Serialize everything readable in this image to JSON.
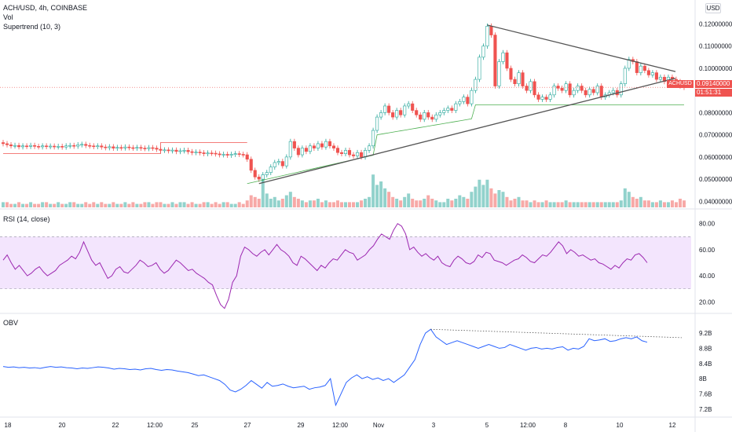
{
  "header": {
    "symbol_line": "ACH/USD, 4h, COINBASE",
    "vol_label": "Vol",
    "supertrend_label": "Supertrend (10, 3)",
    "currency_badge": "USD"
  },
  "price_tag": {
    "symbol": "ACHUSD",
    "price": "0.09140000",
    "countdown": "01:51:31",
    "color": "#ef5350"
  },
  "colors": {
    "up": "#26a69a",
    "down": "#ef5350",
    "rsi_line": "#9c27b0",
    "rsi_band": "#f3e5fd",
    "obv_line": "#2962ff",
    "supertrend_up": "#4caf50",
    "supertrend_down": "#ef5350"
  },
  "chart_data": [
    {
      "type": "candlestick",
      "title": "ACH/USD, 4h, COINBASE",
      "y_ticks": [
        "0.12000000",
        "0.11000000",
        "0.10000000",
        "0.08000000",
        "0.07000000",
        "0.06000000",
        "0.05000000",
        "0.04000000"
      ],
      "y_tick_values": [
        0.12,
        0.11,
        0.1,
        0.08,
        0.07,
        0.06,
        0.05,
        0.04
      ],
      "ylim": [
        0.038,
        0.123
      ],
      "closes": [
        0.066,
        0.0655,
        0.065,
        0.0652,
        0.0646,
        0.065,
        0.0648,
        0.0652,
        0.0648,
        0.0646,
        0.065,
        0.0647,
        0.0649,
        0.0646,
        0.0648,
        0.0645,
        0.065,
        0.0652,
        0.0649,
        0.0655,
        0.0657,
        0.0652,
        0.065,
        0.0647,
        0.065,
        0.0645,
        0.0642,
        0.0646,
        0.064,
        0.0643,
        0.0641,
        0.0645,
        0.0642,
        0.064,
        0.0643,
        0.064,
        0.0638,
        0.0642,
        0.064,
        0.0635,
        0.063,
        0.0632,
        0.0628,
        0.0631,
        0.0625,
        0.0628,
        0.063,
        0.0624,
        0.062,
        0.0622,
        0.0619,
        0.0615,
        0.0618,
        0.0617,
        0.0614,
        0.061,
        0.0612,
        0.0608,
        0.0612,
        0.0615,
        0.0612,
        0.061,
        0.059,
        0.054,
        0.051,
        0.05,
        0.052,
        0.053,
        0.0555,
        0.0575,
        0.058,
        0.056,
        0.06,
        0.067,
        0.064,
        0.061,
        0.064,
        0.0625,
        0.065,
        0.064,
        0.066,
        0.0645,
        0.067,
        0.065,
        0.064,
        0.062,
        0.0615,
        0.063,
        0.061,
        0.0605,
        0.062,
        0.06,
        0.063,
        0.065,
        0.072,
        0.078,
        0.08,
        0.083,
        0.08,
        0.078,
        0.081,
        0.079,
        0.083,
        0.084,
        0.081,
        0.079,
        0.077,
        0.08,
        0.078,
        0.077,
        0.079,
        0.08,
        0.081,
        0.082,
        0.081,
        0.084,
        0.085,
        0.087,
        0.084,
        0.09,
        0.095,
        0.105,
        0.11,
        0.119,
        0.115,
        0.092,
        0.103,
        0.107,
        0.1,
        0.095,
        0.093,
        0.098,
        0.092,
        0.09,
        0.094,
        0.088,
        0.086,
        0.087,
        0.086,
        0.088,
        0.092,
        0.091,
        0.09,
        0.093,
        0.088,
        0.09,
        0.092,
        0.09,
        0.088,
        0.0905,
        0.089,
        0.092,
        0.087,
        0.088,
        0.089,
        0.09,
        0.088,
        0.093,
        0.1,
        0.104,
        0.103,
        0.098,
        0.101,
        0.099,
        0.097,
        0.098,
        0.095,
        0.096,
        0.094,
        0.096,
        0.095,
        0.094,
        0.092,
        0.0914
      ],
      "volumes": [
        0.3,
        0.3,
        0.2,
        0.2,
        0.3,
        0.2,
        0.2,
        0.3,
        0.2,
        0.2,
        0.3,
        0.3,
        0.2,
        0.2,
        0.3,
        0.2,
        0.2,
        0.3,
        0.3,
        0.2,
        0.2,
        0.3,
        0.2,
        0.3,
        0.2,
        0.3,
        0.2,
        0.2,
        0.3,
        0.2,
        0.2,
        0.3,
        0.2,
        0.3,
        0.2,
        0.2,
        0.3,
        0.3,
        0.2,
        0.3,
        0.3,
        0.2,
        0.2,
        0.3,
        0.2,
        0.3,
        0.3,
        0.2,
        0.3,
        0.2,
        0.2,
        0.3,
        0.3,
        0.2,
        0.3,
        0.2,
        0.3,
        0.3,
        0.2,
        0.2,
        0.3,
        0.2,
        0.4,
        0.7,
        0.6,
        0.5,
        1.9,
        0.8,
        0.5,
        0.6,
        0.4,
        0.5,
        0.7,
        0.9,
        0.6,
        0.5,
        0.4,
        0.3,
        0.4,
        0.4,
        0.5,
        0.3,
        0.4,
        0.3,
        0.3,
        0.4,
        0.3,
        0.3,
        0.3,
        0.3,
        0.3,
        0.4,
        0.5,
        0.6,
        1.9,
        1.3,
        1.5,
        1.1,
        0.9,
        0.6,
        0.5,
        0.4,
        0.6,
        0.8,
        0.5,
        0.4,
        0.4,
        0.5,
        0.7,
        0.5,
        0.4,
        0.3,
        0.3,
        0.5,
        0.4,
        0.5,
        0.7,
        0.6,
        0.5,
        0.9,
        1.2,
        1.6,
        1.3,
        1.6,
        1.1,
        0.8,
        1.0,
        0.9,
        0.6,
        0.4,
        0.5,
        0.6,
        0.4,
        0.4,
        0.3,
        0.4,
        0.3,
        0.3,
        0.4,
        0.3,
        0.3,
        0.3,
        0.3,
        0.4,
        0.3,
        0.3,
        0.3,
        0.3,
        0.3,
        0.3,
        0.3,
        0.3,
        0.3,
        0.3,
        0.3,
        0.3,
        0.3,
        0.4,
        1.1,
        0.9,
        0.6,
        0.5,
        0.6,
        0.4,
        0.4,
        0.3,
        0.3,
        0.4,
        0.3,
        0.3,
        0.4,
        0.3,
        0.5,
        0.4
      ]
    },
    {
      "type": "line",
      "title": "RSI (14, close)",
      "y_ticks": [
        "80.00",
        "60.00",
        "40.00",
        "20.00"
      ],
      "y_tick_values": [
        80,
        60,
        40,
        20
      ],
      "ylim": [
        13,
        84
      ],
      "band": [
        30,
        70
      ],
      "values": [
        52,
        56,
        50,
        45,
        48,
        44,
        40,
        42,
        45,
        47,
        43,
        40,
        42,
        44,
        48,
        50,
        52,
        55,
        53,
        58,
        66,
        59,
        52,
        48,
        50,
        44,
        38,
        40,
        45,
        47,
        43,
        42,
        45,
        48,
        52,
        50,
        47,
        48,
        50,
        45,
        42,
        44,
        48,
        52,
        50,
        47,
        44,
        45,
        42,
        40,
        38,
        35,
        33,
        25,
        18,
        15,
        22,
        35,
        40,
        55,
        62,
        60,
        57,
        55,
        58,
        60,
        56,
        60,
        64,
        60,
        58,
        55,
        50,
        48,
        55,
        53,
        50,
        47,
        44,
        48,
        46,
        50,
        53,
        52,
        56,
        60,
        58,
        57,
        52,
        54,
        56,
        60,
        63,
        68,
        72,
        70,
        68,
        75,
        80,
        78,
        72,
        60,
        62,
        58,
        55,
        57,
        54,
        52,
        55,
        50,
        48,
        47,
        52,
        55,
        53,
        50,
        49,
        51,
        56,
        54,
        58,
        57,
        52,
        51,
        50,
        48,
        50,
        52,
        53,
        56,
        54,
        51,
        50,
        53,
        56,
        55,
        58,
        62,
        66,
        63,
        57,
        60,
        58,
        55,
        56,
        54,
        52,
        53,
        50,
        49,
        47,
        45,
        48,
        46,
        50,
        53,
        52,
        56,
        57,
        54,
        50
      ],
      "stride": 1
    },
    {
      "type": "line",
      "title": "OBV",
      "y_ticks": [
        "9.2B",
        "8.8B",
        "8.4B",
        "8B",
        "7.6B",
        "7.2B"
      ],
      "y_tick_values": [
        9.2,
        8.8,
        8.4,
        8.0,
        7.6,
        7.2
      ],
      "ylim": [
        7.05,
        9.45
      ],
      "values": [
        8.32,
        8.3,
        8.31,
        8.29,
        8.3,
        8.28,
        8.29,
        8.27,
        8.3,
        8.32,
        8.3,
        8.31,
        8.29,
        8.28,
        8.26,
        8.28,
        8.27,
        8.29,
        8.31,
        8.3,
        8.28,
        8.25,
        8.27,
        8.26,
        8.24,
        8.25,
        8.23,
        8.26,
        8.27,
        8.24,
        8.22,
        8.24,
        8.23,
        8.2,
        8.18,
        8.16,
        8.12,
        8.08,
        8.1,
        8.05,
        8.0,
        7.95,
        7.85,
        7.7,
        7.65,
        7.72,
        7.82,
        7.95,
        7.85,
        7.75,
        7.9,
        7.8,
        7.82,
        7.86,
        7.8,
        7.76,
        7.78,
        7.8,
        7.72,
        7.76,
        7.78,
        7.82,
        8.0,
        7.3,
        7.6,
        7.9,
        8.02,
        8.1,
        8.0,
        8.05,
        7.98,
        8.02,
        7.95,
        8.0,
        7.9,
        8.0,
        8.1,
        8.3,
        8.5,
        8.9,
        9.2,
        9.3,
        9.1,
        9.0,
        8.9,
        8.95,
        9.0,
        8.95,
        8.9,
        8.85,
        8.8,
        8.85,
        8.9,
        8.85,
        8.8,
        8.82,
        8.9,
        8.85,
        8.8,
        8.75,
        8.8,
        8.82,
        8.78,
        8.8,
        8.78,
        8.82,
        8.84,
        8.75,
        8.8,
        8.78,
        8.85,
        9.05,
        9.0,
        9.02,
        9.05,
        8.98,
        9.0,
        9.05,
        9.08,
        9.05,
        9.1,
        9.0,
        8.96
      ],
      "trendline_label": ""
    }
  ],
  "x_axis": {
    "labels": [
      "18",
      "20",
      "22",
      "12:00",
      "25",
      "27",
      "29",
      "12:00",
      "Nov",
      "3",
      "5",
      "12:00",
      "8",
      "10",
      "12"
    ]
  }
}
